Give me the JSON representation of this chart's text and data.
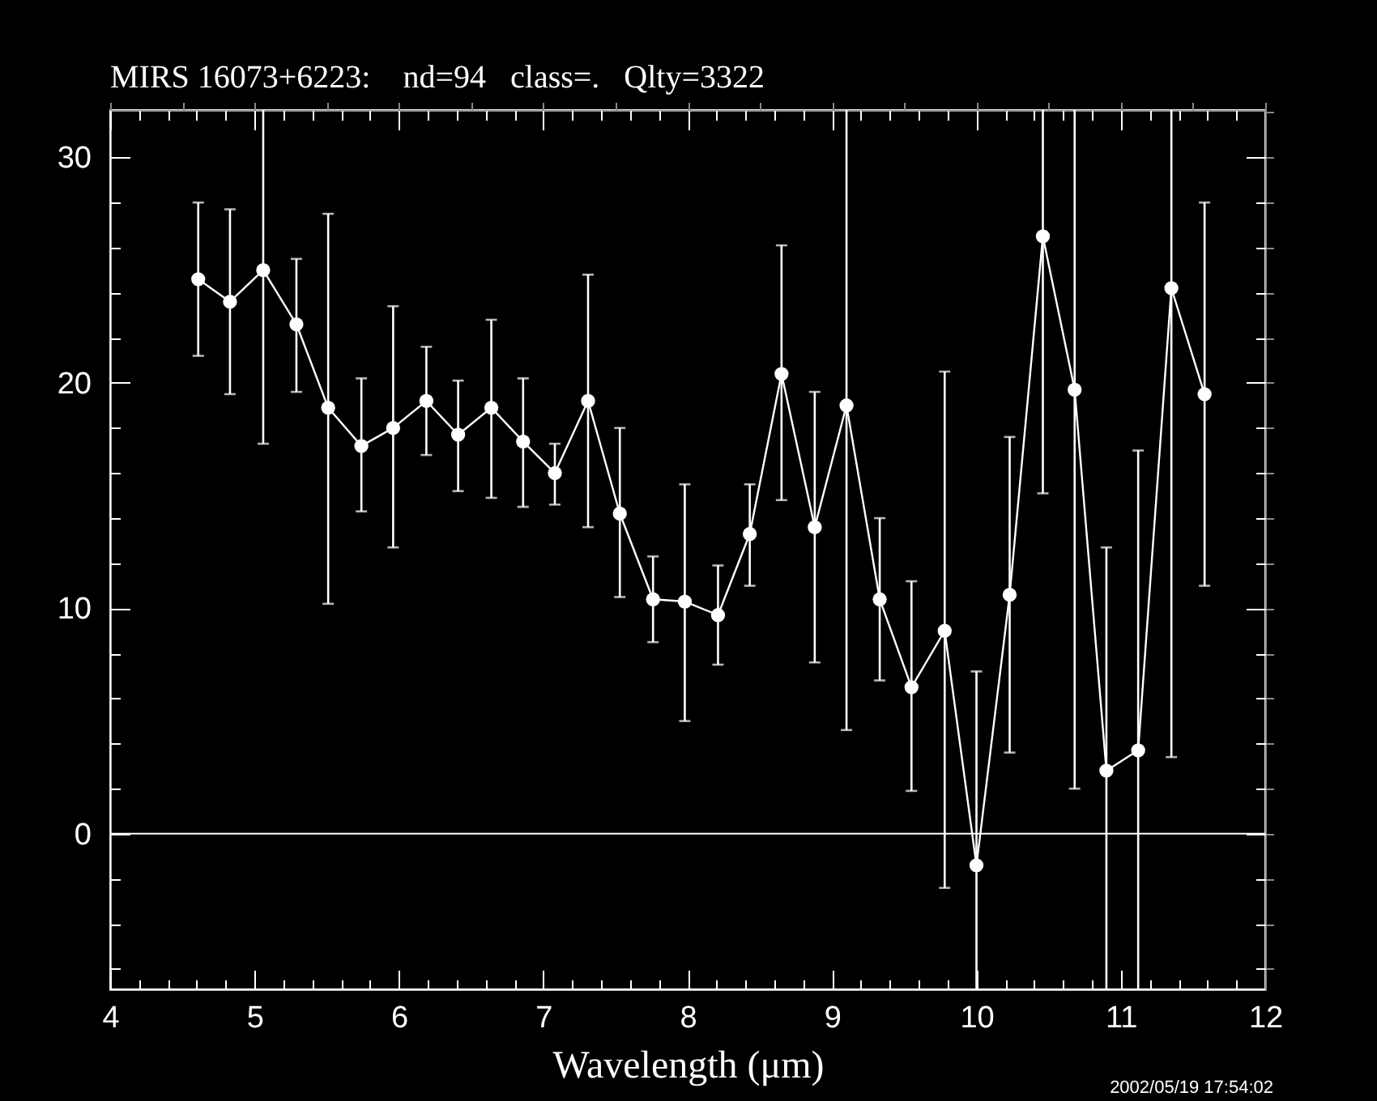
{
  "chart_data": {
    "type": "line",
    "title": "MIRS 16073+6223:    nd=94   class=.   Qlty=3322",
    "xlabel": "Wavelength (μm)",
    "annotations": [
      "2002/05/19 17:54:02"
    ],
    "x": [
      4.61,
      4.83,
      5.06,
      5.29,
      5.51,
      5.74,
      5.96,
      6.19,
      6.41,
      6.64,
      6.86,
      7.08,
      7.31,
      7.53,
      7.76,
      7.98,
      8.21,
      8.43,
      8.65,
      8.88,
      9.1,
      9.33,
      9.55,
      9.78,
      10.0,
      10.23,
      10.46,
      10.68,
      10.9,
      11.12,
      11.35,
      11.58
    ],
    "series": [
      {
        "color": "#ffffff",
        "values": [
          24.6,
          23.6,
          25.0,
          22.6,
          18.9,
          17.2,
          18.0,
          19.2,
          17.7,
          18.9,
          17.4,
          16.0,
          19.2,
          14.2,
          10.4,
          10.3,
          9.7,
          13.3,
          20.4,
          13.6,
          19.0,
          10.4,
          6.5,
          9.0,
          -1.4,
          10.6,
          26.5,
          19.7,
          2.8,
          3.7,
          24.2,
          19.5
        ],
        "errors": [
          [
            21.2,
            28.0
          ],
          [
            19.5,
            27.7
          ],
          [
            17.3,
            32.1
          ],
          [
            19.6,
            25.5
          ],
          [
            10.2,
            27.5
          ],
          [
            14.3,
            20.2
          ],
          [
            12.7,
            23.4
          ],
          [
            16.8,
            21.6
          ],
          [
            15.2,
            20.1
          ],
          [
            14.9,
            22.8
          ],
          [
            14.5,
            20.2
          ],
          [
            14.6,
            17.3
          ],
          [
            13.6,
            24.8
          ],
          [
            10.5,
            18.0
          ],
          [
            8.5,
            12.3
          ],
          [
            5.0,
            15.5
          ],
          [
            7.5,
            11.9
          ],
          [
            11.0,
            15.5
          ],
          [
            14.8,
            26.1
          ],
          [
            7.6,
            19.6
          ],
          [
            4.6,
            32.1
          ],
          [
            6.8,
            14.0
          ],
          [
            1.9,
            11.2
          ],
          [
            -2.4,
            20.5
          ],
          [
            -6.9,
            7.2
          ],
          [
            3.6,
            17.6
          ],
          [
            15.1,
            32.1
          ],
          [
            2.0,
            32.1
          ],
          [
            -6.9,
            12.7
          ],
          [
            -6.9,
            17.0
          ],
          [
            3.4,
            32.1
          ],
          [
            11.0,
            28.0
          ]
        ]
      }
    ],
    "xlim": [
      4,
      12
    ],
    "xticks": [
      4,
      {
        "value": 4.2,
        "label": null
      },
      {
        "value": 4.4,
        "label": null
      },
      {
        "value": 4.6,
        "label": null
      },
      {
        "value": 4.8,
        "label": null
      },
      5,
      {
        "value": 5.2,
        "label": null
      },
      {
        "value": 5.4,
        "label": null
      },
      {
        "value": 5.6,
        "label": null
      },
      {
        "value": 5.8,
        "label": null
      },
      6,
      {
        "value": 6.2,
        "label": null
      },
      {
        "value": 6.4,
        "label": null
      },
      {
        "value": 6.6,
        "label": null
      },
      {
        "value": 6.8,
        "label": null
      },
      7,
      {
        "value": 7.2,
        "label": null
      },
      {
        "value": 7.4,
        "label": null
      },
      {
        "value": 7.6,
        "label": null
      },
      {
        "value": 7.8,
        "label": null
      },
      8,
      {
        "value": 8.2,
        "label": null
      },
      {
        "value": 8.4,
        "label": null
      },
      {
        "value": 8.6,
        "label": null
      },
      {
        "value": 8.8,
        "label": null
      },
      9,
      {
        "value": 9.2,
        "label": null
      },
      {
        "value": 9.4,
        "label": null
      },
      {
        "value": 9.6,
        "label": null
      },
      {
        "value": 9.8,
        "label": null
      },
      10,
      {
        "value": 10.2,
        "label": null
      },
      {
        "value": 10.4,
        "label": null
      },
      {
        "value": 10.6,
        "label": null
      },
      {
        "value": 10.8,
        "label": null
      },
      11,
      {
        "value": 11.2,
        "label": null
      },
      {
        "value": 11.4,
        "label": null
      },
      {
        "value": 11.6,
        "label": null
      },
      {
        "value": 11.8,
        "label": null
      },
      12
    ],
    "ylim": [
      -6.9,
      32.1
    ],
    "yticks": [
      {
        "value": -6,
        "label": null
      },
      {
        "value": -4,
        "label": null
      },
      {
        "value": -2,
        "label": null
      },
      0,
      {
        "value": 2,
        "label": null
      },
      {
        "value": 4,
        "label": null
      },
      {
        "value": 6,
        "label": null
      },
      {
        "value": 8,
        "label": null
      },
      10,
      {
        "value": 12,
        "label": null
      },
      {
        "value": 14,
        "label": null
      },
      {
        "value": 16,
        "label": null
      },
      {
        "value": 18,
        "label": null
      },
      20,
      {
        "value": 22,
        "label": null
      },
      {
        "value": 24,
        "label": null
      },
      {
        "value": 26,
        "label": null
      },
      {
        "value": 28,
        "label": null
      },
      30
    ],
    "ref_lines": [
      {
        "axis": "y",
        "value": 0,
        "color": "#ffffff"
      }
    ],
    "marker": "circle",
    "line_style": "solid",
    "grid": false
  }
}
